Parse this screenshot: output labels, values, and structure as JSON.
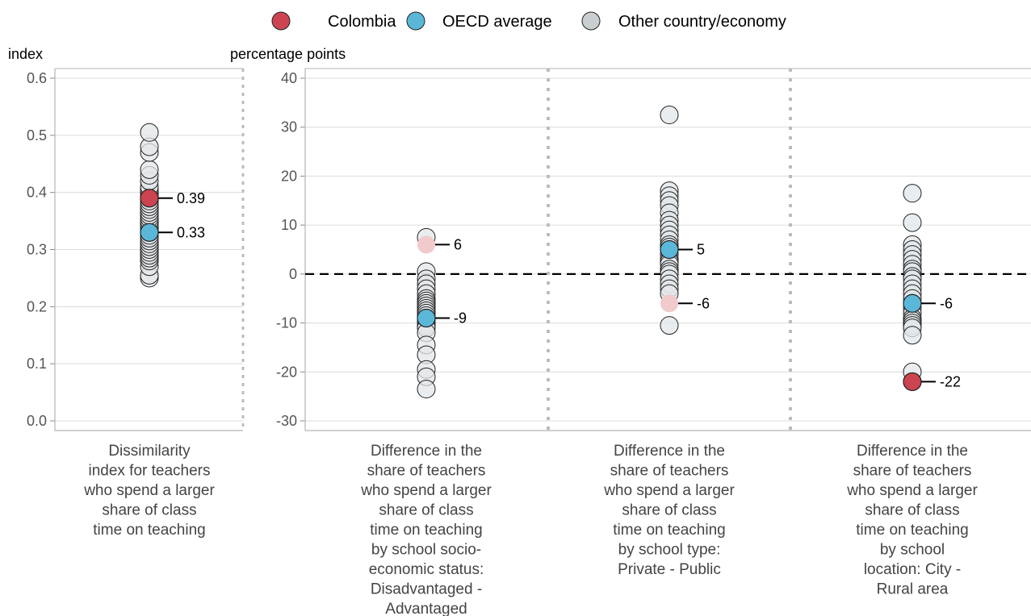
{
  "colors": {
    "colombia": "#cc4451",
    "oecd": "#5bb7d8",
    "other": "#e3e7e9",
    "colombia_light": "#f1cacc",
    "frame": "#b5b5b5",
    "grid": "#dcdcdc"
  },
  "legend": [
    {
      "label": "Colombia",
      "color": "#cc4451"
    },
    {
      "label": "OECD average",
      "color": "#5bb7d8"
    },
    {
      "label": "Other country/economy",
      "color": "#c9ced1"
    }
  ],
  "chart_data": [
    {
      "type": "scatter",
      "ylabel": "index",
      "ylim": [
        0,
        0.6
      ],
      "yticks": [
        "0.0",
        "0.1",
        "0.2",
        "0.3",
        "0.4",
        "0.5",
        "0.6"
      ],
      "ytick_values": [
        0,
        0.1,
        0.2,
        0.3,
        0.4,
        0.5,
        0.6
      ],
      "categories": [
        {
          "label": "Dissimilarity index for teachers who spend a larger share of class time on teaching",
          "label_lines": [
            "Dissimilarity",
            "index for teachers",
            "who spend a larger",
            "share of class",
            "time on teaching"
          ],
          "others": [
            0.25,
            0.255,
            0.27,
            0.28,
            0.285,
            0.29,
            0.295,
            0.3,
            0.305,
            0.31,
            0.315,
            0.32,
            0.325,
            0.33,
            0.335,
            0.34,
            0.345,
            0.35,
            0.355,
            0.36,
            0.365,
            0.37,
            0.375,
            0.38,
            0.385,
            0.39,
            0.395,
            0.4,
            0.405,
            0.41,
            0.42,
            0.43,
            0.44,
            0.47,
            0.48,
            0.505
          ],
          "colombia": {
            "value": 0.39,
            "label": "0.39",
            "significant": true
          },
          "oecd": {
            "value": 0.33,
            "label": "0.33"
          }
        }
      ]
    },
    {
      "type": "scatter",
      "ylabel": "percentage points",
      "ylim": [
        -30,
        40
      ],
      "yticks": [
        "-30",
        "-20",
        "-10",
        "0",
        "10",
        "20",
        "30",
        "40"
      ],
      "ytick_values": [
        -30,
        -20,
        -10,
        0,
        10,
        20,
        30,
        40
      ],
      "reference_line": 0,
      "categories": [
        {
          "label": "Difference in the share of teachers who spend a larger share of class time on teaching by school socio-economic status: Disadvantaged - Advantaged",
          "label_lines": [
            "Difference in the",
            "share of teachers",
            "who spend a larger",
            "share of class",
            "time on teaching",
            "by school socio-",
            "economic status:",
            "Disadvantaged -",
            "Advantaged"
          ],
          "others": [
            7.5,
            0.5,
            -1,
            -2,
            -3,
            -4,
            -5,
            -5.5,
            -6,
            -6.5,
            -7,
            -7.5,
            -8,
            -8.5,
            -9,
            -9.5,
            -10,
            -10.5,
            -11,
            -12,
            -14.5,
            -16.5,
            -19.5,
            -21,
            -23.5
          ],
          "colombia": {
            "value": 6,
            "label": "6",
            "significant": false
          },
          "oecd": {
            "value": -9,
            "label": "-9"
          }
        },
        {
          "label": "Difference in the share of teachers who spend a larger share of class time on teaching by school type: Private - Public",
          "label_lines": [
            "Difference in the",
            "share of teachers",
            "who spend a larger",
            "share of class",
            "time on teaching",
            "by school type:",
            "Private - Public"
          ],
          "others": [
            32.5,
            17,
            16,
            15,
            14,
            12.5,
            11,
            10,
            9,
            8,
            7,
            6,
            5.5,
            5,
            4,
            3,
            2.5,
            2,
            1,
            0.5,
            0,
            -1,
            -2,
            -3,
            -4,
            -10.5
          ],
          "colombia": {
            "value": -6,
            "label": "-6",
            "significant": false
          },
          "oecd": {
            "value": 5,
            "label": "5"
          }
        },
        {
          "label": "Difference in the share of teachers who spend a larger share of class time on teaching by school location: City - Rural area",
          "label_lines": [
            "Difference in the",
            "share of teachers",
            "who spend a larger",
            "share of class",
            "time on teaching",
            "by school",
            "location: City -",
            "Rural area"
          ],
          "others": [
            16.5,
            10.5,
            6,
            5,
            4,
            3,
            2,
            1,
            0.5,
            -0.5,
            -1,
            -2,
            -3,
            -4,
            -5,
            -6,
            -7,
            -8,
            -9,
            -9.5,
            -10,
            -10.5,
            -11,
            -12.5,
            -20,
            -22
          ],
          "colombia": {
            "value": -22,
            "label": "-22",
            "significant": true
          },
          "oecd": {
            "value": -6,
            "label": "-6"
          }
        }
      ]
    }
  ]
}
